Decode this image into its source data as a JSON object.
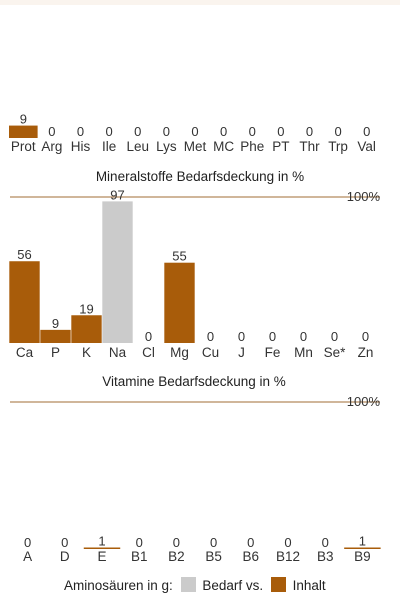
{
  "colors": {
    "inhalt": "#a85c0a",
    "bedarf": "#cbcbcb",
    "reference_line": "#b58a5e",
    "text": "#333333"
  },
  "chart_data": [
    {
      "type": "bar",
      "title": "",
      "categories": [
        "Prot",
        "Arg",
        "His",
        "Ile",
        "Leu",
        "Lys",
        "Met",
        "MC",
        "Phe",
        "PT",
        "Thr",
        "Trp",
        "Val"
      ],
      "series": [
        {
          "name": "Inhalt",
          "values": [
            9,
            0,
            0,
            0,
            0,
            0,
            0,
            0,
            0,
            0,
            0,
            0,
            0
          ]
        }
      ],
      "data_labels": [
        "9",
        "0",
        "0",
        "0",
        "0",
        "0",
        "0",
        "0",
        "0",
        "0",
        "0",
        "0",
        "0"
      ],
      "ylim": [
        0,
        100
      ]
    },
    {
      "type": "bar",
      "title": "Mineralstoffe Bedarfsdeckung in %",
      "categories": [
        "Ca",
        "P",
        "K",
        "Na",
        "Cl",
        "Mg",
        "Cu",
        "J",
        "Fe",
        "Mn",
        "Se*",
        "Zn"
      ],
      "series": [
        {
          "name": "Inhalt",
          "values": [
            56,
            9,
            19,
            0,
            0,
            55,
            0,
            0,
            0,
            0,
            0,
            0
          ]
        },
        {
          "name": "Bedarf vs.",
          "values": [
            0,
            0,
            0,
            97,
            0,
            0,
            0,
            0,
            0,
            0,
            0,
            0
          ]
        }
      ],
      "data_labels": [
        "56",
        "9",
        "19",
        "97",
        "0",
        "55",
        "0",
        "0",
        "0",
        "0",
        "0",
        "0"
      ],
      "reference_line": {
        "value": 100,
        "label": "100%"
      },
      "ylim": [
        0,
        100
      ]
    },
    {
      "type": "bar",
      "title": "Vitamine Bedarfsdeckung in %",
      "categories": [
        "A",
        "D",
        "E",
        "B1",
        "B2",
        "B5",
        "B6",
        "B12",
        "B3",
        "B9"
      ],
      "series": [
        {
          "name": "Inhalt",
          "values": [
            0,
            0,
            1,
            0,
            0,
            0,
            0,
            0,
            0,
            1
          ]
        }
      ],
      "data_labels": [
        "0",
        "0",
        "1",
        "0",
        "0",
        "0",
        "0",
        "0",
        "0",
        "1"
      ],
      "reference_line": {
        "value": 100,
        "label": "100%"
      },
      "ylim": [
        0,
        100
      ]
    }
  ],
  "legend": {
    "prefix": "Aminosäuren in g:",
    "bedarf_label": "Bedarf vs.",
    "inhalt_label": "Inhalt"
  }
}
